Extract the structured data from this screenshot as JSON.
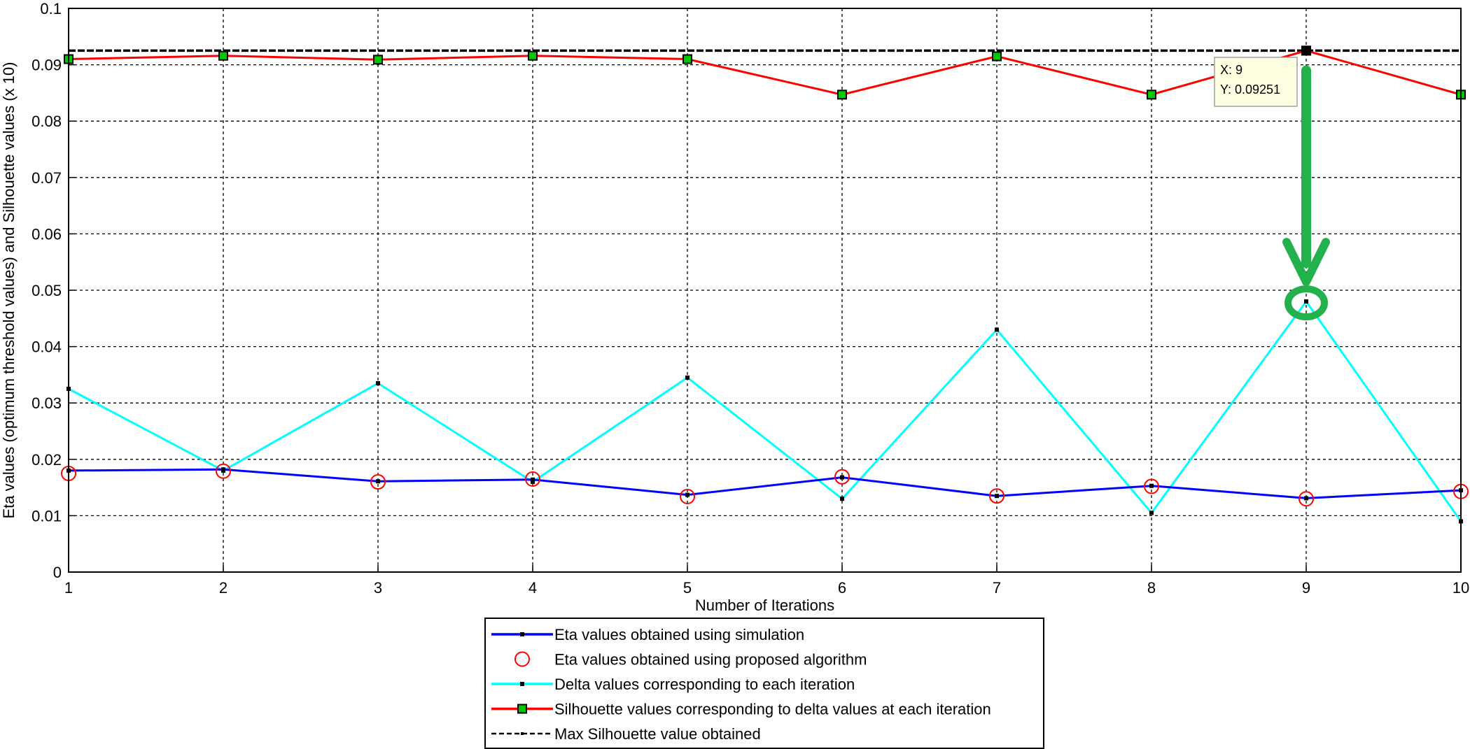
{
  "chart_data": {
    "type": "line",
    "title": "",
    "xlabel": "Number of Iterations",
    "ylabel": "Eta values (optimum threshold values) and Silhouette values (x 10)",
    "xlim": [
      1,
      10
    ],
    "ylim": [
      0,
      0.1
    ],
    "x_ticks": [
      "1",
      "2",
      "3",
      "4",
      "5",
      "6",
      "7",
      "8",
      "9",
      "10"
    ],
    "y_ticks": [
      "0",
      "0.01",
      "0.02",
      "0.03",
      "0.04",
      "0.05",
      "0.06",
      "0.07",
      "0.08",
      "0.09",
      "0.1"
    ],
    "grid": true,
    "legend_position": "bottom-center",
    "x": [
      1,
      2,
      3,
      4,
      5,
      6,
      7,
      8,
      9,
      10
    ],
    "series": [
      {
        "name": "Eta values obtained using simulation",
        "color": "#0000ff",
        "style": "line-dot",
        "values": [
          0.018,
          0.0182,
          0.0161,
          0.0164,
          0.0137,
          0.0168,
          0.0135,
          0.0153,
          0.0131,
          0.0145
        ]
      },
      {
        "name": "Eta values obtained using proposed algorithm",
        "color": "#ff0000",
        "style": "circle",
        "values": [
          0.0175,
          0.0179,
          0.016,
          0.0165,
          0.0134,
          0.0169,
          0.0135,
          0.0152,
          0.013,
          0.0143
        ]
      },
      {
        "name": "Delta values corresponding to each iteration",
        "color": "#00ffff",
        "style": "line-dot",
        "values": [
          0.0325,
          0.018,
          0.0335,
          0.016,
          0.0345,
          0.013,
          0.043,
          0.0105,
          0.048,
          0.009
        ]
      },
      {
        "name": "Silhouette values corresponding to delta values at each iteration",
        "color": "#ff0000",
        "style": "line-square",
        "values": [
          0.091,
          0.0916,
          0.0909,
          0.0916,
          0.091,
          0.0847,
          0.0915,
          0.0847,
          0.09251,
          0.0847
        ]
      },
      {
        "name": "Max Silhouette value obtained",
        "color": "#000000",
        "style": "dashed",
        "values": [
          0.09251,
          0.09251,
          0.09251,
          0.09251,
          0.09251,
          0.09251,
          0.09251,
          0.09251,
          0.09251,
          0.09251
        ]
      }
    ],
    "datatip": {
      "x": 9,
      "y": 0.09251,
      "x_text": "X: 9",
      "y_text": "Y: 0.09251"
    },
    "annotation": {
      "type": "arrow-to-circle",
      "color": "#22b14c",
      "from": {
        "x": 9,
        "y": 0.089
      },
      "to": {
        "x": 9,
        "y": 0.048
      }
    }
  }
}
